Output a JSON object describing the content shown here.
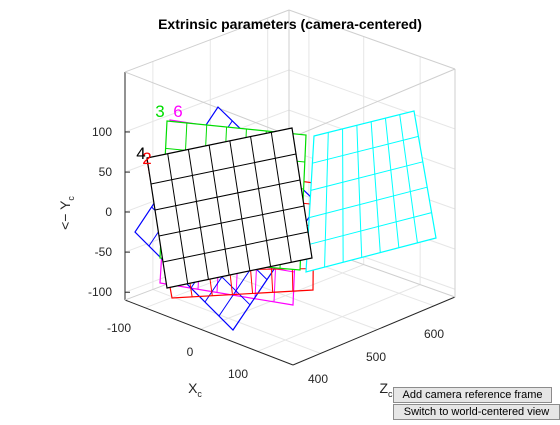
{
  "window": {
    "buttons": {
      "add_camera_frame": "Add camera reference frame",
      "switch_view": "Switch to world-centered view"
    }
  },
  "chart_data": {
    "type": "3d-extrinsics",
    "title": "Extrinsic parameters (camera-centered)",
    "axes": {
      "x": {
        "label": "X",
        "sub": "c",
        "ticks": [
          "-100",
          "0",
          "100"
        ]
      },
      "y": {
        "label": "<− Y",
        "sub": "c",
        "ticks": [
          "100",
          "50",
          "0",
          "-50",
          "-100"
        ]
      },
      "z": {
        "label": "Z",
        "sub": "c",
        "ticks": [
          "400",
          "500",
          "600"
        ]
      }
    },
    "grid": true,
    "box": true,
    "boards": [
      {
        "id": "1",
        "color": "#0000ff",
        "label": "",
        "cols": 7,
        "rows": 5
      },
      {
        "id": "2",
        "color": "#ff0000",
        "label": "2",
        "cols": 7,
        "rows": 5
      },
      {
        "id": "3",
        "color": "#00dd00",
        "label": "3",
        "cols": 7,
        "rows": 5
      },
      {
        "id": "4",
        "color": "#000000",
        "label": "4",
        "cols": 7,
        "rows": 5
      },
      {
        "id": "5",
        "color": "#00ffff",
        "label": "",
        "cols": 7,
        "rows": 5
      },
      {
        "id": "6",
        "color": "#ff00ff",
        "label": "6",
        "cols": 7,
        "rows": 5
      }
    ]
  }
}
